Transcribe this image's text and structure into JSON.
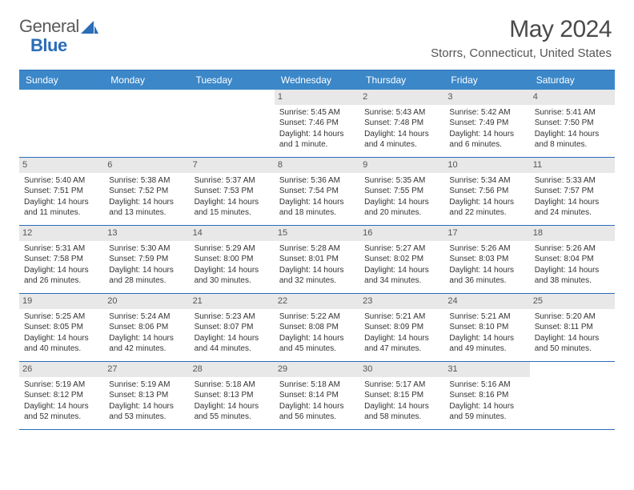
{
  "logo": {
    "word1": "General",
    "word2": "Blue"
  },
  "title": "May 2024",
  "location": "Storrs, Connecticut, United States",
  "colors": {
    "header_bg": "#3b87c8",
    "border": "#2a6db8",
    "daynum_bg": "#e8e8e8",
    "text": "#333333",
    "logo_gray": "#5a5a5a",
    "logo_blue": "#2a6db8"
  },
  "weekdays": [
    "Sunday",
    "Monday",
    "Tuesday",
    "Wednesday",
    "Thursday",
    "Friday",
    "Saturday"
  ],
  "weeks": [
    [
      {
        "n": "",
        "sunrise": "",
        "sunset": "",
        "daylight": ""
      },
      {
        "n": "",
        "sunrise": "",
        "sunset": "",
        "daylight": ""
      },
      {
        "n": "",
        "sunrise": "",
        "sunset": "",
        "daylight": ""
      },
      {
        "n": "1",
        "sunrise": "Sunrise: 5:45 AM",
        "sunset": "Sunset: 7:46 PM",
        "daylight": "Daylight: 14 hours and 1 minute."
      },
      {
        "n": "2",
        "sunrise": "Sunrise: 5:43 AM",
        "sunset": "Sunset: 7:48 PM",
        "daylight": "Daylight: 14 hours and 4 minutes."
      },
      {
        "n": "3",
        "sunrise": "Sunrise: 5:42 AM",
        "sunset": "Sunset: 7:49 PM",
        "daylight": "Daylight: 14 hours and 6 minutes."
      },
      {
        "n": "4",
        "sunrise": "Sunrise: 5:41 AM",
        "sunset": "Sunset: 7:50 PM",
        "daylight": "Daylight: 14 hours and 8 minutes."
      }
    ],
    [
      {
        "n": "5",
        "sunrise": "Sunrise: 5:40 AM",
        "sunset": "Sunset: 7:51 PM",
        "daylight": "Daylight: 14 hours and 11 minutes."
      },
      {
        "n": "6",
        "sunrise": "Sunrise: 5:38 AM",
        "sunset": "Sunset: 7:52 PM",
        "daylight": "Daylight: 14 hours and 13 minutes."
      },
      {
        "n": "7",
        "sunrise": "Sunrise: 5:37 AM",
        "sunset": "Sunset: 7:53 PM",
        "daylight": "Daylight: 14 hours and 15 minutes."
      },
      {
        "n": "8",
        "sunrise": "Sunrise: 5:36 AM",
        "sunset": "Sunset: 7:54 PM",
        "daylight": "Daylight: 14 hours and 18 minutes."
      },
      {
        "n": "9",
        "sunrise": "Sunrise: 5:35 AM",
        "sunset": "Sunset: 7:55 PM",
        "daylight": "Daylight: 14 hours and 20 minutes."
      },
      {
        "n": "10",
        "sunrise": "Sunrise: 5:34 AM",
        "sunset": "Sunset: 7:56 PM",
        "daylight": "Daylight: 14 hours and 22 minutes."
      },
      {
        "n": "11",
        "sunrise": "Sunrise: 5:33 AM",
        "sunset": "Sunset: 7:57 PM",
        "daylight": "Daylight: 14 hours and 24 minutes."
      }
    ],
    [
      {
        "n": "12",
        "sunrise": "Sunrise: 5:31 AM",
        "sunset": "Sunset: 7:58 PM",
        "daylight": "Daylight: 14 hours and 26 minutes."
      },
      {
        "n": "13",
        "sunrise": "Sunrise: 5:30 AM",
        "sunset": "Sunset: 7:59 PM",
        "daylight": "Daylight: 14 hours and 28 minutes."
      },
      {
        "n": "14",
        "sunrise": "Sunrise: 5:29 AM",
        "sunset": "Sunset: 8:00 PM",
        "daylight": "Daylight: 14 hours and 30 minutes."
      },
      {
        "n": "15",
        "sunrise": "Sunrise: 5:28 AM",
        "sunset": "Sunset: 8:01 PM",
        "daylight": "Daylight: 14 hours and 32 minutes."
      },
      {
        "n": "16",
        "sunrise": "Sunrise: 5:27 AM",
        "sunset": "Sunset: 8:02 PM",
        "daylight": "Daylight: 14 hours and 34 minutes."
      },
      {
        "n": "17",
        "sunrise": "Sunrise: 5:26 AM",
        "sunset": "Sunset: 8:03 PM",
        "daylight": "Daylight: 14 hours and 36 minutes."
      },
      {
        "n": "18",
        "sunrise": "Sunrise: 5:26 AM",
        "sunset": "Sunset: 8:04 PM",
        "daylight": "Daylight: 14 hours and 38 minutes."
      }
    ],
    [
      {
        "n": "19",
        "sunrise": "Sunrise: 5:25 AM",
        "sunset": "Sunset: 8:05 PM",
        "daylight": "Daylight: 14 hours and 40 minutes."
      },
      {
        "n": "20",
        "sunrise": "Sunrise: 5:24 AM",
        "sunset": "Sunset: 8:06 PM",
        "daylight": "Daylight: 14 hours and 42 minutes."
      },
      {
        "n": "21",
        "sunrise": "Sunrise: 5:23 AM",
        "sunset": "Sunset: 8:07 PM",
        "daylight": "Daylight: 14 hours and 44 minutes."
      },
      {
        "n": "22",
        "sunrise": "Sunrise: 5:22 AM",
        "sunset": "Sunset: 8:08 PM",
        "daylight": "Daylight: 14 hours and 45 minutes."
      },
      {
        "n": "23",
        "sunrise": "Sunrise: 5:21 AM",
        "sunset": "Sunset: 8:09 PM",
        "daylight": "Daylight: 14 hours and 47 minutes."
      },
      {
        "n": "24",
        "sunrise": "Sunrise: 5:21 AM",
        "sunset": "Sunset: 8:10 PM",
        "daylight": "Daylight: 14 hours and 49 minutes."
      },
      {
        "n": "25",
        "sunrise": "Sunrise: 5:20 AM",
        "sunset": "Sunset: 8:11 PM",
        "daylight": "Daylight: 14 hours and 50 minutes."
      }
    ],
    [
      {
        "n": "26",
        "sunrise": "Sunrise: 5:19 AM",
        "sunset": "Sunset: 8:12 PM",
        "daylight": "Daylight: 14 hours and 52 minutes."
      },
      {
        "n": "27",
        "sunrise": "Sunrise: 5:19 AM",
        "sunset": "Sunset: 8:13 PM",
        "daylight": "Daylight: 14 hours and 53 minutes."
      },
      {
        "n": "28",
        "sunrise": "Sunrise: 5:18 AM",
        "sunset": "Sunset: 8:13 PM",
        "daylight": "Daylight: 14 hours and 55 minutes."
      },
      {
        "n": "29",
        "sunrise": "Sunrise: 5:18 AM",
        "sunset": "Sunset: 8:14 PM",
        "daylight": "Daylight: 14 hours and 56 minutes."
      },
      {
        "n": "30",
        "sunrise": "Sunrise: 5:17 AM",
        "sunset": "Sunset: 8:15 PM",
        "daylight": "Daylight: 14 hours and 58 minutes."
      },
      {
        "n": "31",
        "sunrise": "Sunrise: 5:16 AM",
        "sunset": "Sunset: 8:16 PM",
        "daylight": "Daylight: 14 hours and 59 minutes."
      },
      {
        "n": "",
        "sunrise": "",
        "sunset": "",
        "daylight": ""
      }
    ]
  ]
}
